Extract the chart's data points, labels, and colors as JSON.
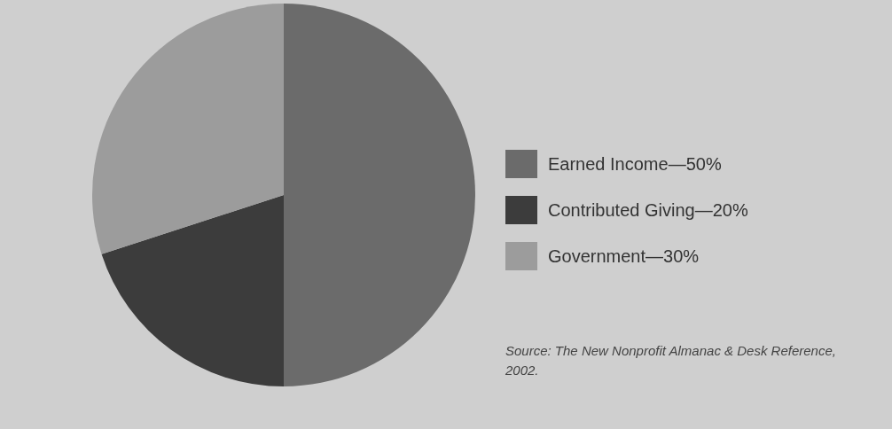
{
  "chart_data": {
    "type": "pie",
    "categories": [
      "Earned Income—50%",
      "Contributed Giving—20%",
      "Government—30%"
    ],
    "values": [
      50,
      20,
      30
    ],
    "colors": [
      "#6b6b6b",
      "#3c3c3c",
      "#9c9c9c"
    ],
    "legend": "right",
    "annotations": [
      "Source: The New Nonprofit Almanac & Desk Reference, 2002."
    ]
  }
}
